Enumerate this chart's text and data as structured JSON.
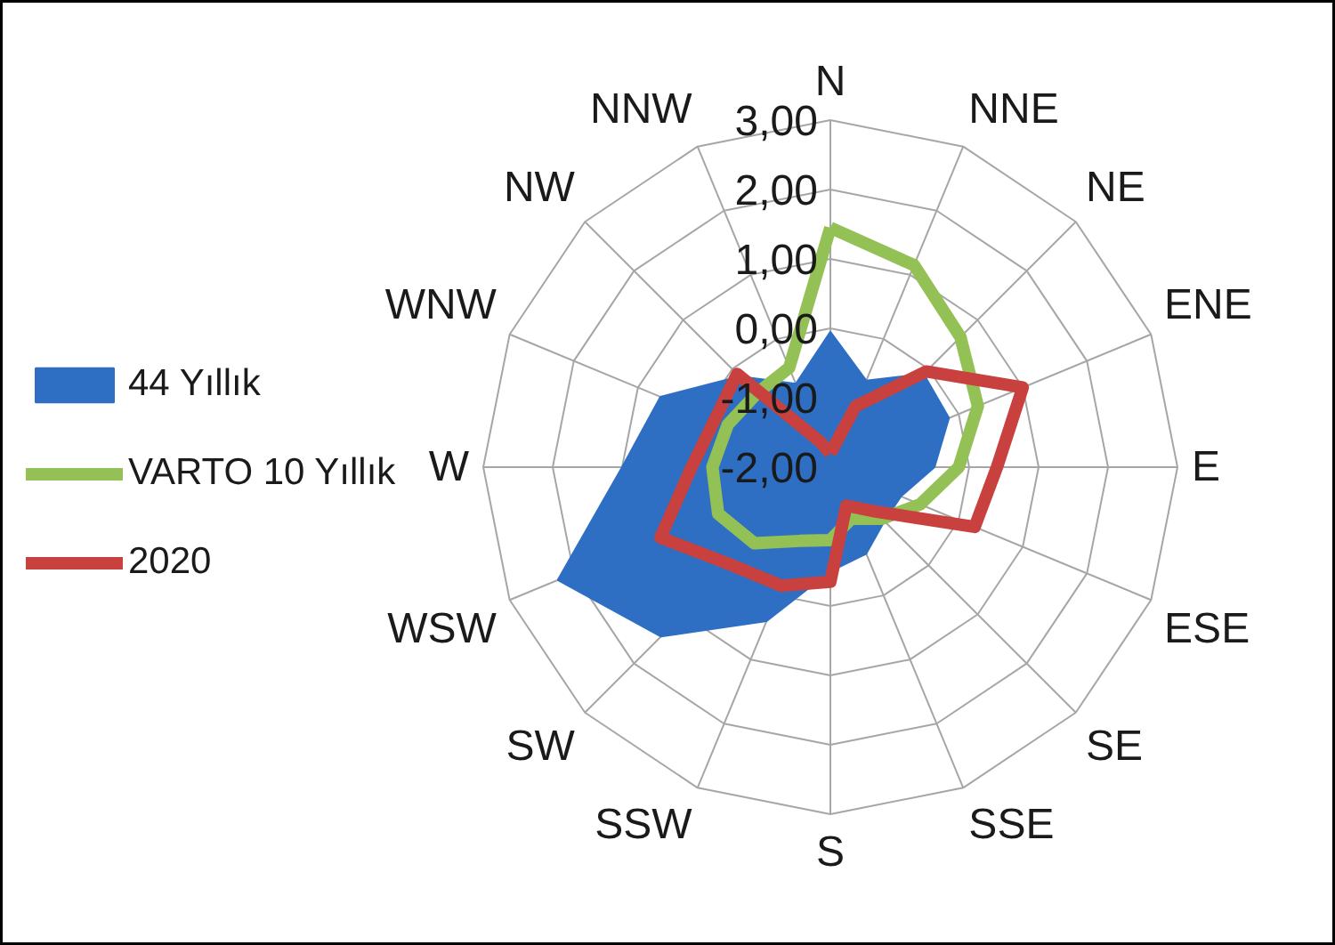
{
  "chart_data": {
    "type": "radar",
    "categories": [
      "N",
      "NNE",
      "NE",
      "ENE",
      "E",
      "ESE",
      "SE",
      "SSE",
      "S",
      "SSW",
      "SW",
      "WSW",
      "W",
      "WNW",
      "NW",
      "NNW"
    ],
    "ylim": [
      -2,
      3
    ],
    "yticks": [
      {
        "value": -2,
        "label": "-2,00"
      },
      {
        "value": -1,
        "label": "-1,00"
      },
      {
        "value": 0,
        "label": "0,00"
      },
      {
        "value": 1,
        "label": "1,00"
      },
      {
        "value": 2,
        "label": "2,00"
      },
      {
        "value": 3,
        "label": "3,00"
      }
    ],
    "grid": true,
    "legend": "left",
    "line_style": "solid",
    "series": [
      {
        "name": "44 Yıllık",
        "type": "area",
        "color": "#2e6fc4",
        "values": [
          -0.05,
          -0.65,
          -0.1,
          -0.15,
          -0.5,
          -0.9,
          -0.9,
          -0.65,
          -0.5,
          0.4,
          1.45,
          2.25,
          1.0,
          0.65,
          -0.15,
          -0.7
        ]
      },
      {
        "name": "VARTO 10 Yıllık",
        "color": "#94c155",
        "values": [
          1.45,
          1.15,
          0.65,
          0.3,
          -0.15,
          -0.6,
          -0.95,
          -1.2,
          -0.95,
          -0.85,
          -0.45,
          -0.25,
          -0.3,
          -0.4,
          -0.5,
          -0.45
        ]
      },
      {
        "name": "2020",
        "color": "#c8413e",
        "values": [
          -1.8,
          -1.05,
          -0.05,
          1.0,
          0.4,
          0.25,
          -1.1,
          -1.4,
          -0.35,
          -0.15,
          0.0,
          0.65,
          0.0,
          -0.2,
          -0.1,
          -1.6
        ]
      }
    ]
  }
}
